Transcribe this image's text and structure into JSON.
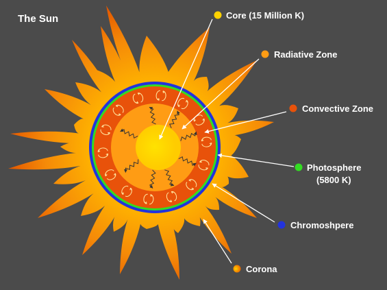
{
  "title": "The Sun",
  "labels": {
    "core": "Core (15 Million K)",
    "radiative": "Radiative Zone",
    "convective": "Convective Zone",
    "photosphere": "Photosphere",
    "photosphere_temp": "(5800 K)",
    "chromosphere": "Chromoshpere",
    "corona": "Corona"
  },
  "colors": {
    "background": "#4b4b4b",
    "core": "#ffd200",
    "radiative": "#ff9c14",
    "convective": "#e8520a",
    "photosphere": "#33dd22",
    "chromosphere": "#2233dd",
    "corona_inner": "#ffd000",
    "corona_outer": "#e85a00"
  }
}
